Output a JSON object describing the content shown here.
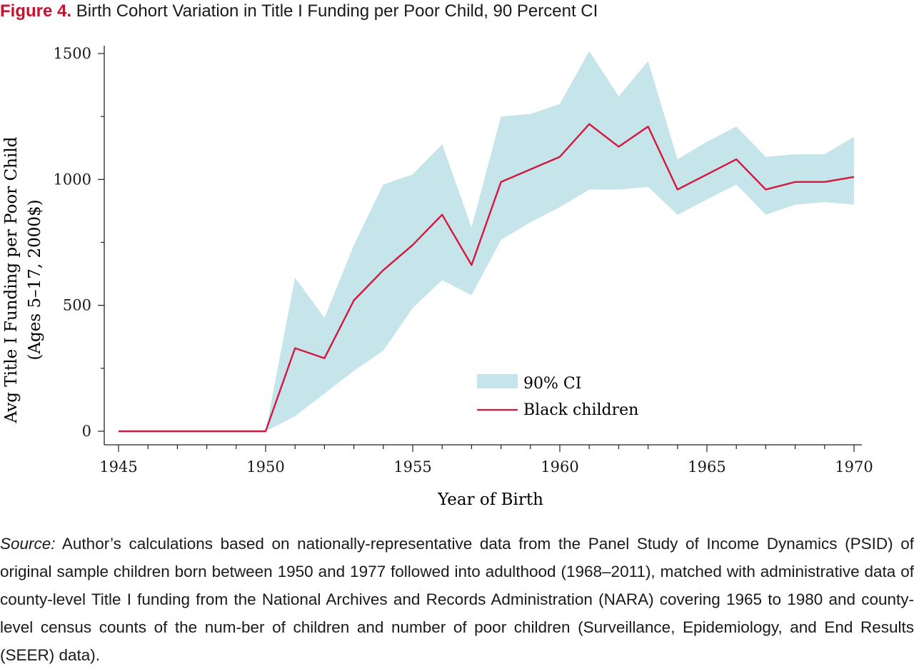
{
  "figure": {
    "label": "Figure 4.",
    "title": "Birth Cohort Variation in Title I Funding per Poor Child, 90 Percent CI"
  },
  "colors": {
    "accent": "#c8102e",
    "ci_band": "#c5e5ea",
    "line": "#d6163f"
  },
  "chart_data": {
    "type": "area",
    "xlabel": "Year of Birth",
    "ylabel_lines": [
      "Avg Title I Funding per Poor Child",
      "(Ages 5–17, 2000$)"
    ],
    "xlim": [
      1945,
      1970
    ],
    "ylim": [
      -60,
      1510
    ],
    "xticks": [
      1945,
      1950,
      1955,
      1960,
      1965,
      1970
    ],
    "yticks": [
      0,
      500,
      1000,
      1500
    ],
    "grid": false,
    "legend_position": "lower-right",
    "x": [
      1945,
      1946,
      1947,
      1948,
      1949,
      1950,
      1951,
      1952,
      1953,
      1954,
      1955,
      1956,
      1957,
      1958,
      1959,
      1960,
      1961,
      1962,
      1963,
      1964,
      1965,
      1966,
      1967,
      1968,
      1969,
      1970
    ],
    "series": [
      {
        "name": "90% CI",
        "kind": "band",
        "lower": [
          0,
          0,
          0,
          0,
          0,
          0,
          60,
          150,
          240,
          320,
          490,
          600,
          540,
          760,
          830,
          890,
          960,
          960,
          970,
          860,
          920,
          980,
          860,
          900,
          910,
          900
        ],
        "upper": [
          0,
          0,
          0,
          0,
          0,
          0,
          610,
          450,
          740,
          980,
          1020,
          1140,
          810,
          1250,
          1260,
          1300,
          1510,
          1330,
          1470,
          1080,
          1150,
          1210,
          1090,
          1100,
          1100,
          1170
        ]
      },
      {
        "name": "Black children",
        "kind": "line",
        "values": [
          0,
          0,
          0,
          0,
          0,
          0,
          330,
          290,
          520,
          640,
          740,
          860,
          660,
          990,
          1040,
          1090,
          1220,
          1130,
          1210,
          960,
          1020,
          1080,
          960,
          990,
          990,
          1010
        ]
      }
    ]
  },
  "source": {
    "lead": "Source:",
    "text": " Author’s calculations based on nationally-representative data from the Panel Study of Income Dynamics (PSID) of original sample children born between 1950 and 1977 followed into adulthood (1968–2011), matched with administrative data of county-level Title I funding from the National Archives and Records Administration (NARA) covering 1965 to 1980 and county-level census counts of the num-ber of children and number of poor children (Surveillance, Epidemiology, and End Results (SEER) data)."
  }
}
